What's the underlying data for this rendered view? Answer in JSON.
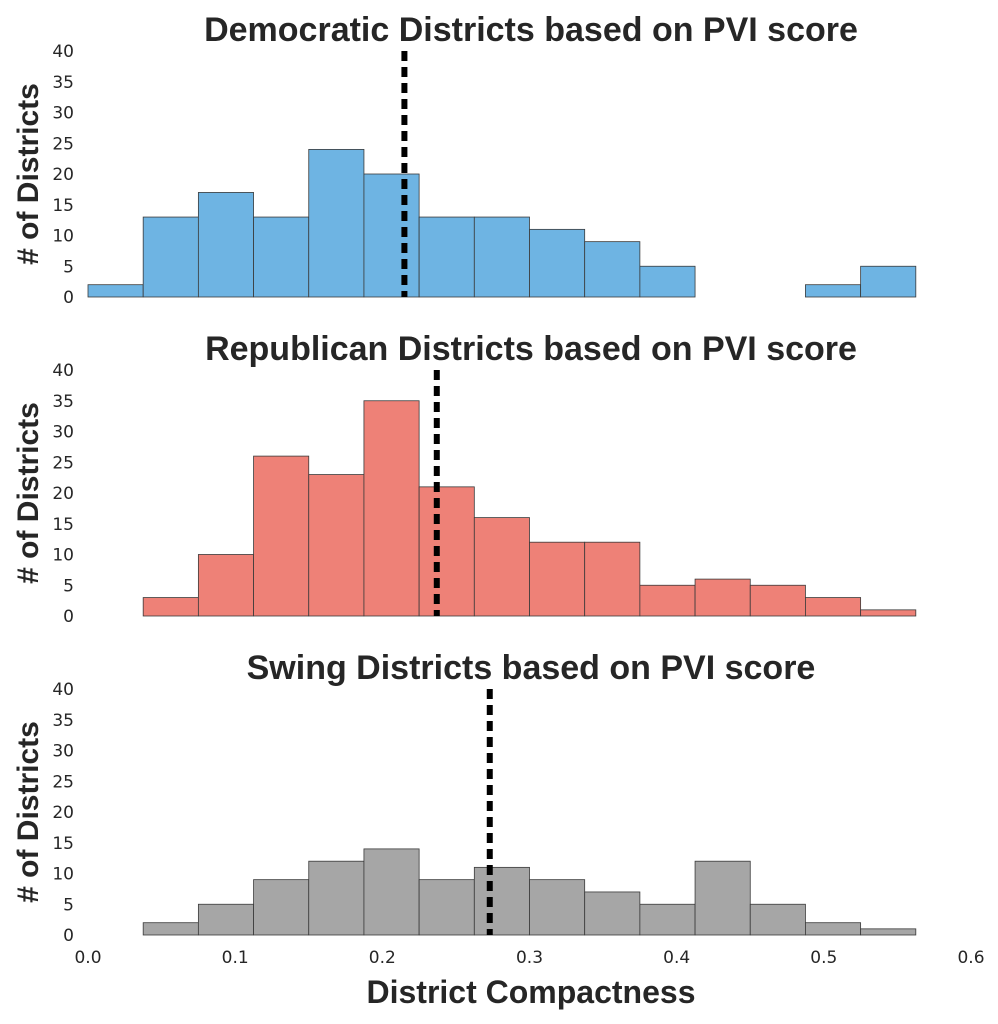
{
  "chart_data": [
    {
      "type": "bar",
      "title": "Democratic Districts based on PVI score",
      "ylabel": "# of Districts",
      "xlabel": "",
      "bin_edges": [
        0.0,
        0.0375,
        0.075,
        0.1125,
        0.15,
        0.1875,
        0.225,
        0.2625,
        0.3,
        0.3375,
        0.375,
        0.4125,
        0.45,
        0.4875,
        0.525,
        0.5625
      ],
      "values": [
        2,
        13,
        17,
        13,
        24,
        20,
        13,
        13,
        11,
        9,
        5,
        0,
        0,
        2,
        5
      ],
      "mean_line": 0.215,
      "xlim": [
        0.0,
        0.6
      ],
      "ylim": [
        0,
        40
      ],
      "yticks": [
        0,
        5,
        10,
        15,
        20,
        25,
        30,
        35,
        40
      ],
      "color": "#6eb4e3",
      "grid": false
    },
    {
      "type": "bar",
      "title": "Republican Districts based on PVI score",
      "ylabel": "# of Districts",
      "xlabel": "",
      "bin_edges": [
        0.0375,
        0.075,
        0.1125,
        0.15,
        0.1875,
        0.225,
        0.2625,
        0.3,
        0.3375,
        0.375,
        0.4125,
        0.45,
        0.4875,
        0.525,
        0.5625
      ],
      "values": [
        3,
        10,
        26,
        23,
        35,
        21,
        16,
        12,
        12,
        5,
        6,
        5,
        3,
        1
      ],
      "mean_line": 0.237,
      "xlim": [
        0.0,
        0.6
      ],
      "ylim": [
        0,
        40
      ],
      "yticks": [
        0,
        5,
        10,
        15,
        20,
        25,
        30,
        35,
        40
      ],
      "color": "#ee8177",
      "grid": false
    },
    {
      "type": "bar",
      "title": "Swing Districts based on PVI score",
      "ylabel": "# of Districts",
      "xlabel": "District Compactness",
      "bin_edges": [
        0.0375,
        0.075,
        0.1125,
        0.15,
        0.1875,
        0.225,
        0.2625,
        0.3,
        0.3375,
        0.375,
        0.4125,
        0.45,
        0.4875,
        0.525,
        0.5625
      ],
      "values": [
        2,
        5,
        9,
        12,
        14,
        9,
        11,
        9,
        7,
        5,
        12,
        5,
        2,
        1
      ],
      "mean_line": 0.273,
      "xlim": [
        0.0,
        0.6
      ],
      "ylim": [
        0,
        40
      ],
      "yticks": [
        0,
        5,
        10,
        15,
        20,
        25,
        30,
        35,
        40
      ],
      "xticks": [
        "0.0",
        "0.1",
        "0.2",
        "0.3",
        "0.4",
        "0.5",
        "0.6"
      ],
      "color": "#a6a6a6",
      "grid": false
    }
  ]
}
